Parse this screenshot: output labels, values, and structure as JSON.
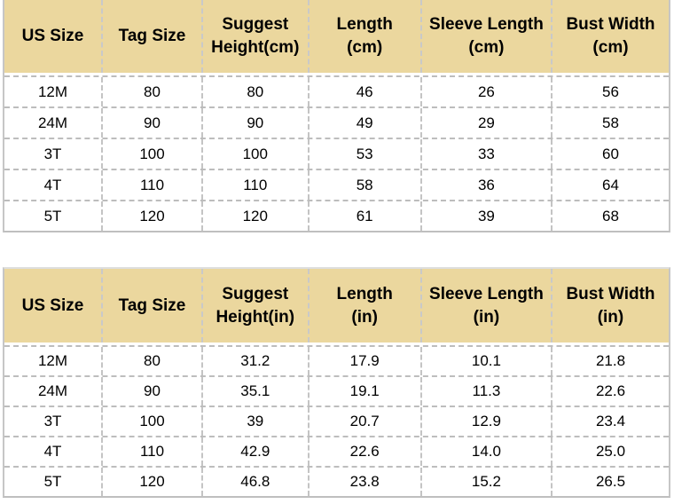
{
  "colors": {
    "header_bg": "#ebd79e",
    "outer_border": "#c6c6c6",
    "dashed_border": "#c2c2c2",
    "text": "#000000"
  },
  "chart_data": [
    {
      "type": "table",
      "title": "",
      "columns": [
        {
          "line1": "US Size",
          "line2": ""
        },
        {
          "line1": "Tag Size",
          "line2": ""
        },
        {
          "line1": "Suggest",
          "line2": "Height(cm)"
        },
        {
          "line1": "Length",
          "line2": "(cm)"
        },
        {
          "line1": "Sleeve Length",
          "line2": "(cm)"
        },
        {
          "line1": "Bust Width",
          "line2": "(cm)"
        }
      ],
      "rows": [
        [
          "12M",
          "80",
          "80",
          "46",
          "26",
          "56"
        ],
        [
          "24M",
          "90",
          "90",
          "49",
          "29",
          "58"
        ],
        [
          "3T",
          "100",
          "100",
          "53",
          "33",
          "60"
        ],
        [
          "4T",
          "110",
          "110",
          "58",
          "36",
          "64"
        ],
        [
          "5T",
          "120",
          "120",
          "61",
          "39",
          "68"
        ]
      ]
    },
    {
      "type": "table",
      "title": "",
      "columns": [
        {
          "line1": "US Size",
          "line2": ""
        },
        {
          "line1": "Tag Size",
          "line2": ""
        },
        {
          "line1": "Suggest",
          "line2": "Height(in)"
        },
        {
          "line1": "Length",
          "line2": "(in)"
        },
        {
          "line1": "Sleeve Length",
          "line2": "(in)"
        },
        {
          "line1": "Bust Width",
          "line2": "(in)"
        }
      ],
      "rows": [
        [
          "12M",
          "80",
          "31.2",
          "17.9",
          "10.1",
          "21.8"
        ],
        [
          "24M",
          "90",
          "35.1",
          "19.1",
          "11.3",
          "22.6"
        ],
        [
          "3T",
          "100",
          "39",
          "20.7",
          "12.9",
          "23.4"
        ],
        [
          "4T",
          "110",
          "42.9",
          "22.6",
          "14.0",
          "25.0"
        ],
        [
          "5T",
          "120",
          "46.8",
          "23.8",
          "15.2",
          "26.5"
        ]
      ]
    }
  ]
}
